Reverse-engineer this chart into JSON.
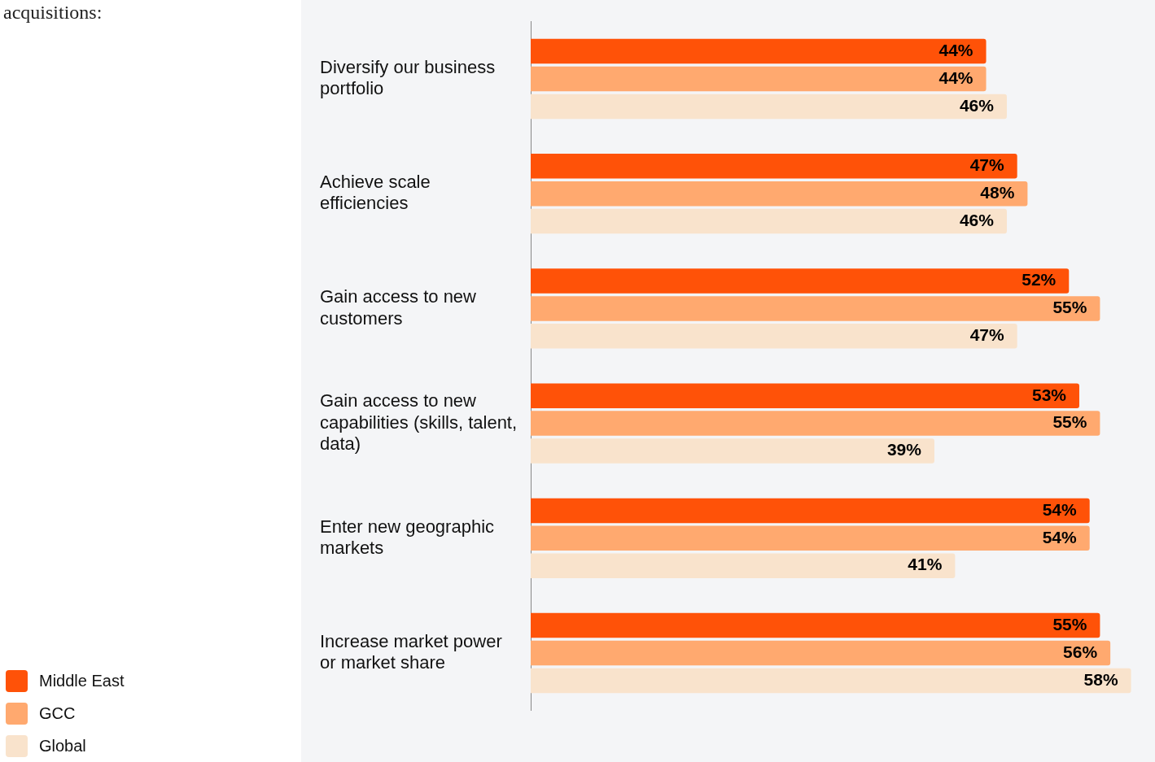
{
  "chart_data": {
    "type": "bar",
    "orientation": "horizontal",
    "annotations": [
      "acquisitions:"
    ],
    "categories": [
      "Diversify our business portfolio",
      "Achieve scale efficiencies",
      "Gain access to new customers",
      "Gain access to new capabilities (skills, talent, data)",
      "Enter new geographic markets",
      "Increase market power or market share"
    ],
    "series": [
      {
        "name": "Middle East",
        "color": "#ff5208",
        "values": [
          44,
          47,
          52,
          53,
          54,
          55
        ],
        "value_labels": [
          "44%",
          "47%",
          "52%",
          "53%",
          "54%",
          "55%"
        ]
      },
      {
        "name": "GCC",
        "color": "#ffa96f",
        "values": [
          44,
          48,
          55,
          55,
          54,
          56
        ],
        "value_labels": [
          "44%",
          "48%",
          "55%",
          "55%",
          "54%",
          "56%"
        ]
      },
      {
        "name": "Global",
        "color": "#f9e3cc",
        "values": [
          46,
          46,
          47,
          39,
          41,
          58
        ],
        "value_labels": [
          "46%",
          "46%",
          "47%",
          "39%",
          "41%",
          "58%"
        ]
      }
    ],
    "grid": false,
    "legend": "bottom left",
    "tick_labels": "y"
  }
}
